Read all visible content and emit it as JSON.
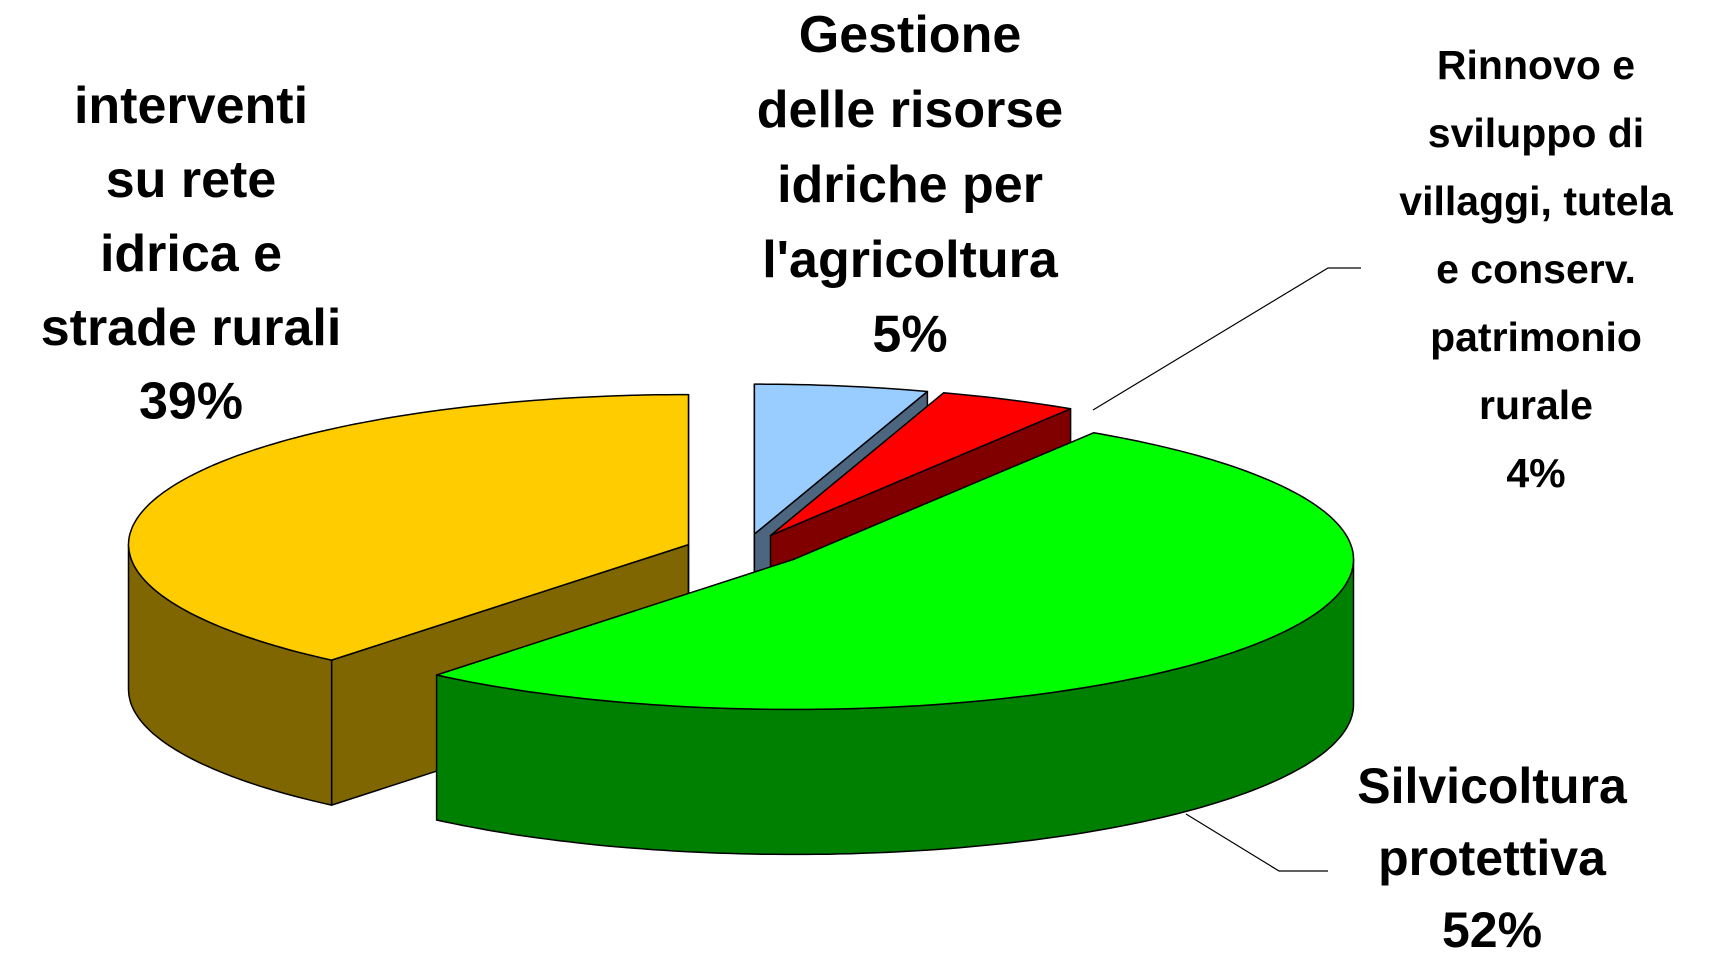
{
  "chart_data": {
    "type": "pie",
    "categories": [
      "Gestione delle risorse idriche per l'agricoltura",
      "Rinnovo e sviluppo di villaggi, tutela e conserv. patrimonio rurale",
      "Silvicoltura protettiva",
      "interventi su rete idrica e strade rurali"
    ],
    "values": [
      5,
      4,
      52,
      39
    ],
    "value_labels": [
      "5%",
      "4%",
      "52%",
      "39%"
    ],
    "colors": [
      "#99ccff",
      "#ff0000",
      "#00ff00",
      "#ffcc00"
    ]
  }
}
